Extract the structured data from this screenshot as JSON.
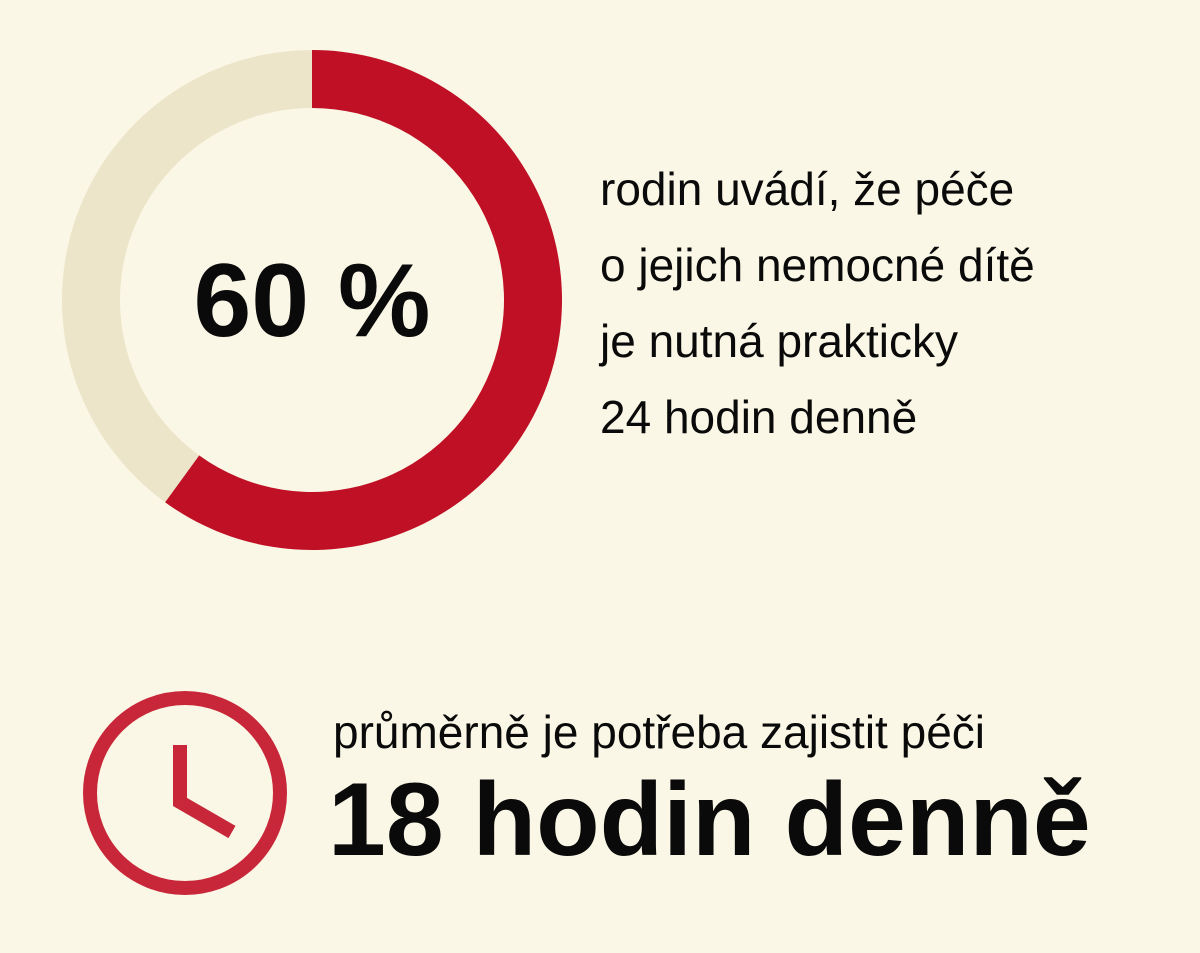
{
  "chart_data": {
    "type": "donut",
    "values": [
      60,
      40
    ],
    "value_labels": [
      "60 %",
      null
    ],
    "colors": [
      "#c01025",
      "#ece5c9"
    ],
    "caption_lines": [
      "rodin uvádí, že péče",
      "o jejich nemocné dítě",
      "je nutná prakticky",
      "24 hodin denně"
    ],
    "note": "průměrně je potřeba zajistit péči",
    "highlight": "18 hodin denně"
  }
}
